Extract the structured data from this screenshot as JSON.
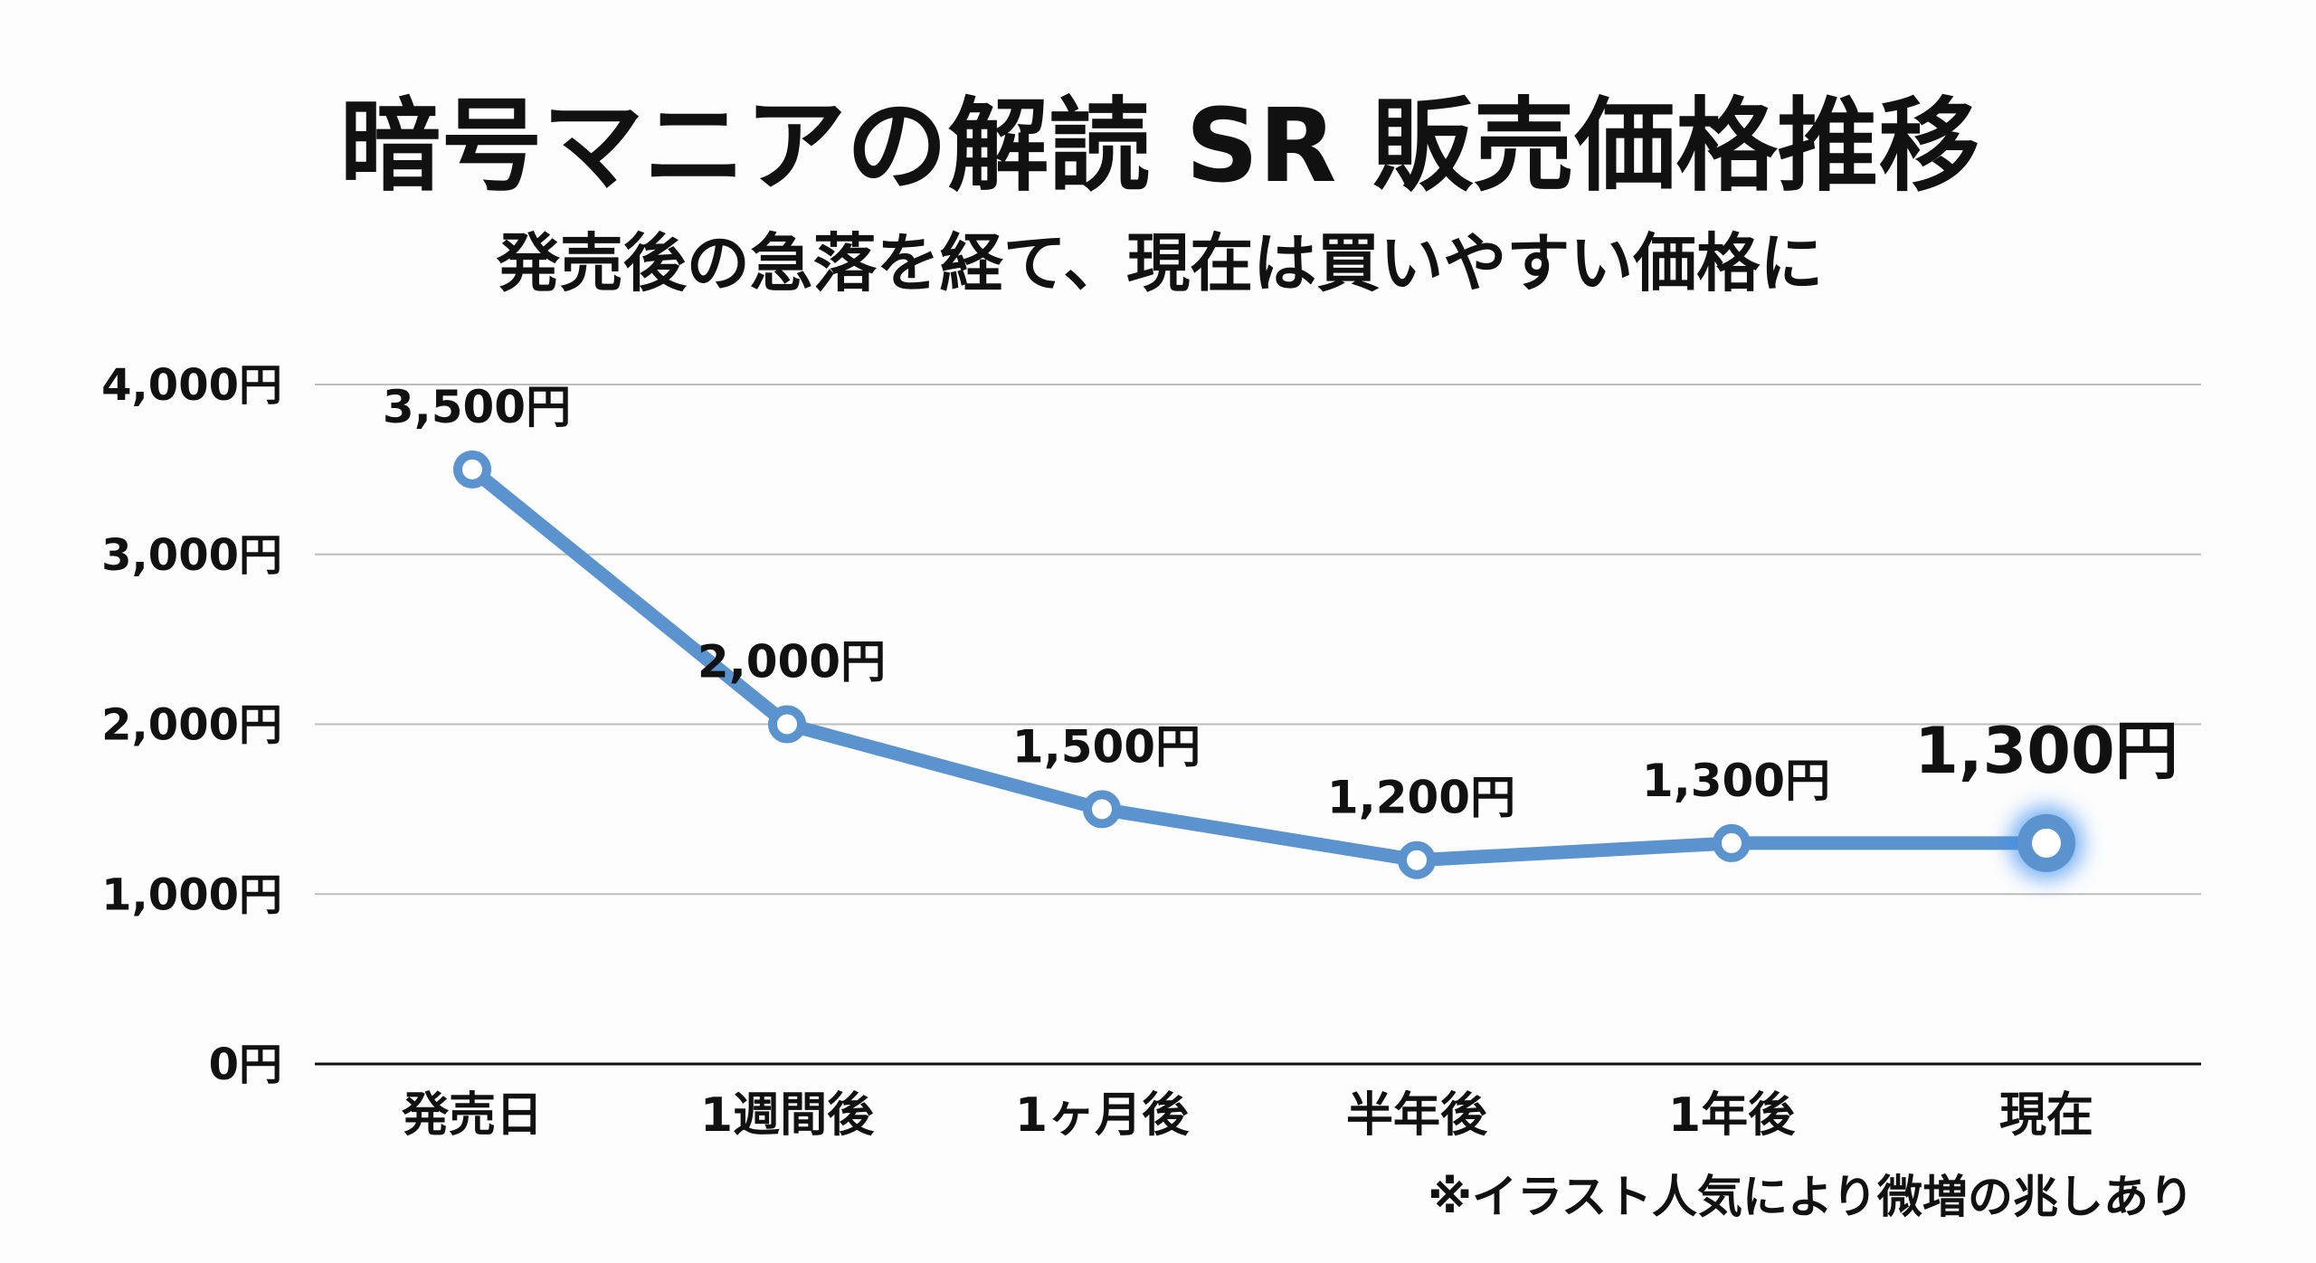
{
  "chart_data": {
    "type": "line",
    "title": "暗号マニアの解読 SR 販売価格推移",
    "subtitle": "発売後の急落を経て、現在は買いやすい価格に",
    "xlabel": "",
    "ylabel": "",
    "categories": [
      "発売日",
      "1週間後",
      "1ヶ月後",
      "半年後",
      "1年後",
      "現在"
    ],
    "values": [
      3500,
      2000,
      1500,
      1200,
      1300,
      1300
    ],
    "data_labels": [
      "3,500円",
      "2,000円",
      "1,500円",
      "1,200円",
      "1,300円",
      "1,300円"
    ],
    "ylim": [
      0,
      4000
    ],
    "yticks": [
      0,
      1000,
      2000,
      3000,
      4000
    ],
    "ytick_labels": [
      "0円",
      "1,000円",
      "2,000円",
      "3,000円",
      "4,000円"
    ],
    "grid": true,
    "highlight_index": 5,
    "annotation": "※イラスト人気により微増の兆しあり",
    "colors": {
      "line": "#5b93cf",
      "glow": "#3d8ef0",
      "grid": "#bdbdbd",
      "axis": "#111111",
      "text": "#111111"
    }
  }
}
